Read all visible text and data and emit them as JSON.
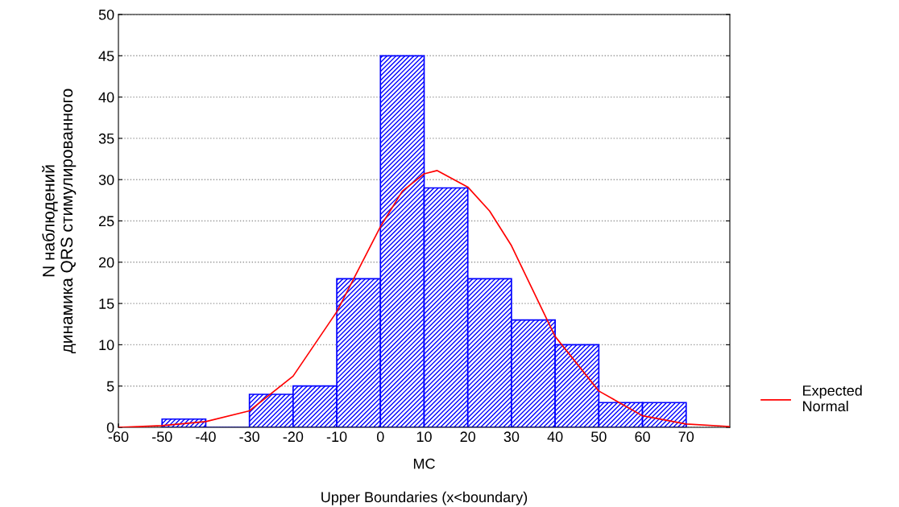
{
  "chart_data": {
    "type": "histogram",
    "xlabel": "MC\n\nUpper Boundaries (x<boundary)",
    "ylabel": "N наблюдений\nдинамика QRS стимулированного",
    "bins": [
      -50,
      -40,
      -30,
      -20,
      -10,
      0,
      10,
      20,
      30,
      40,
      50,
      60,
      70
    ],
    "values": [
      1,
      0,
      4,
      5,
      18,
      45,
      29,
      18,
      13,
      10,
      3,
      3
    ],
    "color": "#0000ff",
    "series": [
      {
        "type": "line",
        "name": "Expected\nNormal",
        "color": "#ff0000",
        "x": [
          -60,
          -50,
          -40,
          -30,
          -20,
          -10,
          0,
          5,
          10,
          13,
          20,
          25,
          30,
          40,
          50,
          60,
          70,
          80
        ],
        "values": [
          0,
          0.2,
          0.7,
          2,
          6.2,
          14,
          24.3,
          28.6,
          30.7,
          31.1,
          29.1,
          26.2,
          22,
          11,
          4.4,
          1.4,
          0.4,
          0.1
        ]
      }
    ],
    "xlim": [
      -60,
      80
    ],
    "xticks": [
      -60,
      -50,
      -40,
      -30,
      -20,
      -10,
      0,
      10,
      20,
      30,
      40,
      50,
      60,
      70
    ],
    "ylim": [
      0,
      50
    ],
    "yticks": [
      0,
      5,
      10,
      15,
      20,
      25,
      30,
      35,
      40,
      45,
      50
    ],
    "grid": "y",
    "legend": "right"
  }
}
